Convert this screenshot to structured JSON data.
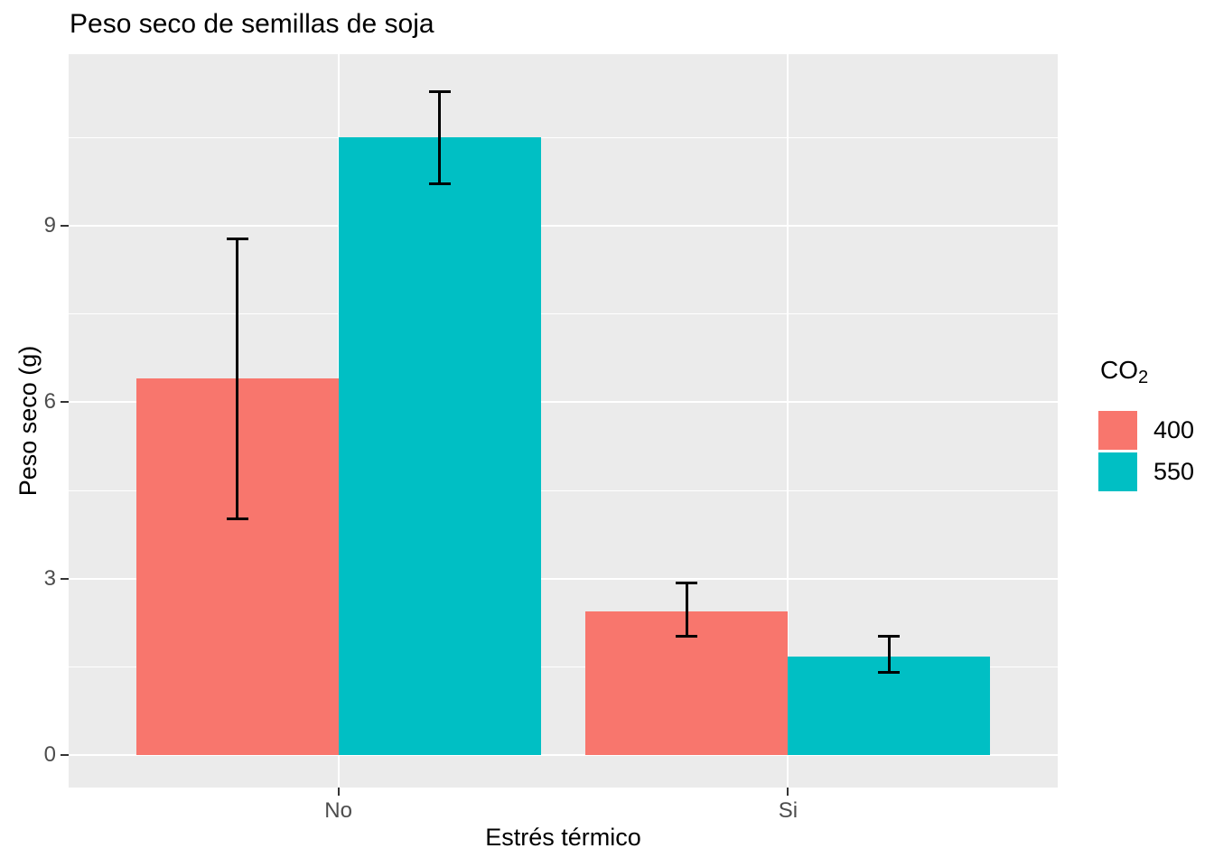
{
  "title": "Peso seco de semillas de soja",
  "axes": {
    "x_title": "Estrés térmico",
    "y_title": "Peso seco (g)",
    "x_tick_labels": [
      "No",
      "Si"
    ],
    "y_tick_labels": [
      "0",
      "3",
      "6",
      "9"
    ]
  },
  "legend": {
    "title_main": "CO",
    "title_sub": "2",
    "items": [
      {
        "label": "400",
        "color": "#F8766D"
      },
      {
        "label": "550",
        "color": "#00BFC4"
      }
    ]
  },
  "colors": {
    "panel_background": "#EBEBEB",
    "gridline": "#FFFFFF",
    "tick_text": "#4D4D4D",
    "tick_mark": "#333333",
    "title_text": "#000000",
    "errorbar": "#000000",
    "series_400": "#F8766D",
    "series_550": "#00BFC4"
  },
  "chart_data": {
    "type": "bar",
    "bar_grouping": "dodged",
    "title": "Peso seco de semillas de soja",
    "xlabel": "Estrés térmico",
    "ylabel": "Peso seco (g)",
    "categories": [
      "No",
      "Si"
    ],
    "legend_title": "CO2",
    "legend_position": "right",
    "grid": true,
    "ylim": [
      -0.55,
      11.92
    ],
    "yticks": [
      0,
      3,
      6,
      9
    ],
    "minor_gridlines": [
      1.5,
      4.5,
      7.5,
      10.5
    ],
    "series": [
      {
        "name": "400",
        "color": "#F8766D",
        "values": [
          6.4,
          2.45
        ],
        "error_low": [
          4.0,
          2.0
        ],
        "error_high": [
          8.8,
          2.95
        ]
      },
      {
        "name": "550",
        "color": "#00BFC4",
        "values": [
          10.5,
          1.68
        ],
        "error_low": [
          9.7,
          1.38
        ],
        "error_high": [
          11.3,
          2.04
        ]
      }
    ]
  }
}
